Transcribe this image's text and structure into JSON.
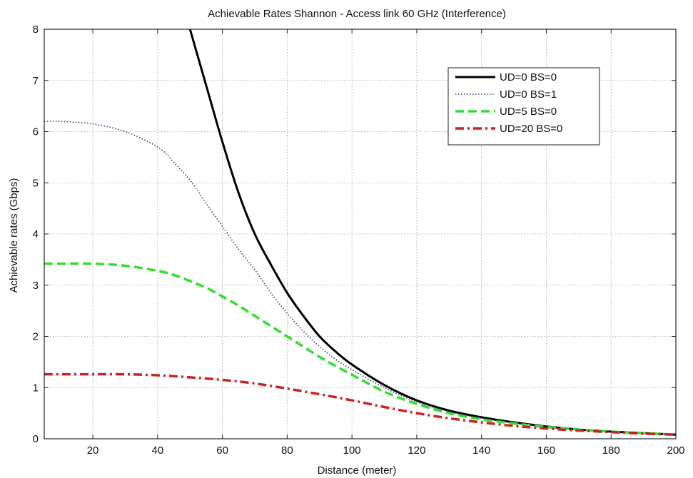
{
  "chart_data": {
    "type": "line",
    "title": "Achievable Rates Shannon - Access link 60 GHz (Interference)",
    "xlabel": "Distance (meter)",
    "ylabel": "Achievable rates (Gbps)",
    "xlim": [
      5,
      200
    ],
    "ylim": [
      0,
      8
    ],
    "xticks": [
      20,
      40,
      60,
      80,
      100,
      120,
      140,
      160,
      180,
      200
    ],
    "yticks": [
      0,
      1,
      2,
      3,
      4,
      5,
      6,
      7,
      8
    ],
    "grid": true,
    "legend_position": "top-right",
    "series": [
      {
        "name": "UD=0 BS=0",
        "color": "#000000",
        "style": "solid",
        "x": [
          50,
          55,
          60,
          65,
          70,
          75,
          80,
          85,
          90,
          95,
          100,
          110,
          120,
          130,
          140,
          150,
          160,
          170,
          180,
          190,
          200
        ],
        "y": [
          8.0,
          6.9,
          5.8,
          4.8,
          4.0,
          3.4,
          2.85,
          2.4,
          2.0,
          1.7,
          1.45,
          1.05,
          0.75,
          0.55,
          0.42,
          0.32,
          0.24,
          0.18,
          0.14,
          0.11,
          0.08
        ]
      },
      {
        "name": "UD=0 BS=1",
        "color": "#3a3a7a",
        "style": "dotted",
        "x": [
          5,
          10,
          20,
          30,
          40,
          45,
          50,
          55,
          60,
          65,
          70,
          75,
          80,
          85,
          90,
          95,
          100,
          110,
          120,
          130,
          140,
          150,
          160,
          170,
          180,
          190,
          200
        ],
        "y": [
          6.2,
          6.2,
          6.15,
          6.0,
          5.7,
          5.4,
          5.05,
          4.6,
          4.15,
          3.7,
          3.3,
          2.85,
          2.45,
          2.1,
          1.8,
          1.55,
          1.35,
          1.0,
          0.72,
          0.53,
          0.4,
          0.31,
          0.24,
          0.18,
          0.14,
          0.11,
          0.08
        ]
      },
      {
        "name": "UD=5 BS=0",
        "color": "#33dd33",
        "style": "dashed",
        "x": [
          5,
          10,
          20,
          30,
          40,
          45,
          50,
          55,
          60,
          65,
          70,
          75,
          80,
          85,
          90,
          95,
          100,
          110,
          120,
          130,
          140,
          150,
          160,
          170,
          180,
          190,
          200
        ],
        "y": [
          3.42,
          3.42,
          3.42,
          3.38,
          3.28,
          3.2,
          3.08,
          2.95,
          2.78,
          2.6,
          2.4,
          2.2,
          2.0,
          1.8,
          1.6,
          1.42,
          1.25,
          0.92,
          0.68,
          0.5,
          0.38,
          0.3,
          0.23,
          0.18,
          0.14,
          0.11,
          0.08
        ]
      },
      {
        "name": "UD=20 BS=0",
        "color": "#cc2222",
        "style": "dashdot",
        "x": [
          5,
          10,
          20,
          30,
          40,
          50,
          60,
          70,
          80,
          90,
          100,
          110,
          120,
          130,
          140,
          150,
          160,
          170,
          180,
          190,
          200
        ],
        "y": [
          1.26,
          1.26,
          1.26,
          1.26,
          1.24,
          1.2,
          1.15,
          1.08,
          0.98,
          0.87,
          0.75,
          0.62,
          0.5,
          0.4,
          0.32,
          0.25,
          0.2,
          0.16,
          0.13,
          0.1,
          0.08
        ]
      }
    ]
  }
}
